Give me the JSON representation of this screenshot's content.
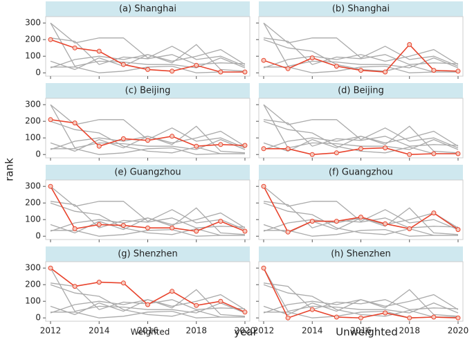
{
  "chart_data": [
    {
      "type": "line",
      "title": "(a) Shanghai",
      "x": [
        2012,
        2013,
        2014,
        2015,
        2016,
        2017,
        2018,
        2019,
        2020
      ],
      "xlim": [
        2011.8,
        2020.2
      ],
      "xticks": [
        2012,
        2014,
        2016,
        2018,
        2020
      ],
      "ylim": [
        -20,
        330
      ],
      "yticks": [
        0,
        100,
        200,
        300
      ],
      "series": [
        {
          "color": "#aaaaaa",
          "values": [
            300,
            180,
            210,
            210,
            90,
            160,
            80,
            100,
            40
          ]
        },
        {
          "color": "#aaaaaa",
          "values": [
            300,
            40,
            70,
            65,
            50,
            50,
            30,
            90,
            30
          ]
        },
        {
          "color": "#aaaaaa",
          "values": [
            210,
            190,
            50,
            95,
            85,
            110,
            50,
            60,
            55
          ]
        },
        {
          "color": "#aaaaaa",
          "values": [
            70,
            20,
            90,
            40,
            110,
            60,
            170,
            20,
            10
          ]
        },
        {
          "color": "#aaaaaa",
          "values": [
            35,
            35,
            0,
            10,
            35,
            40,
            0,
            5,
            5
          ]
        },
        {
          "color": "#aaaaaa",
          "values": [
            30,
            80,
            100,
            80,
            110,
            70,
            100,
            140,
            50
          ]
        },
        {
          "color": "#e8432c",
          "values": [
            200,
            150,
            130,
            50,
            20,
            10,
            45,
            5,
            5
          ]
        }
      ]
    },
    {
      "type": "line",
      "title": "(b) Shanghai",
      "x": [
        2012,
        2013,
        2014,
        2015,
        2016,
        2017,
        2018,
        2019,
        2020
      ],
      "xlim": [
        2011.8,
        2020.2
      ],
      "xticks": [
        2012,
        2014,
        2016,
        2018,
        2020
      ],
      "ylim": [
        -20,
        330
      ],
      "yticks": [
        0,
        100,
        200,
        300
      ],
      "series": [
        {
          "color": "#aaaaaa",
          "values": [
            300,
            180,
            210,
            210,
            90,
            160,
            80,
            100,
            40
          ]
        },
        {
          "color": "#aaaaaa",
          "values": [
            300,
            40,
            70,
            65,
            50,
            50,
            30,
            90,
            30
          ]
        },
        {
          "color": "#aaaaaa",
          "values": [
            210,
            190,
            50,
            95,
            85,
            110,
            50,
            60,
            55
          ]
        },
        {
          "color": "#aaaaaa",
          "values": [
            200,
            150,
            130,
            50,
            20,
            10,
            45,
            5,
            5
          ]
        },
        {
          "color": "#aaaaaa",
          "values": [
            35,
            35,
            0,
            10,
            35,
            40,
            0,
            5,
            5
          ]
        },
        {
          "color": "#aaaaaa",
          "values": [
            30,
            80,
            100,
            80,
            110,
            70,
            100,
            140,
            50
          ]
        },
        {
          "color": "#e8432c",
          "values": [
            75,
            25,
            90,
            40,
            15,
            5,
            170,
            15,
            10
          ]
        }
      ]
    },
    {
      "type": "line",
      "title": "(c) Beijing",
      "x": [
        2012,
        2013,
        2014,
        2015,
        2016,
        2017,
        2018,
        2019,
        2020
      ],
      "xlim": [
        2011.8,
        2020.2
      ],
      "xticks": [
        2012,
        2014,
        2016,
        2018,
        2020
      ],
      "ylim": [
        -20,
        330
      ],
      "yticks": [
        0,
        100,
        200,
        300
      ],
      "series": [
        {
          "color": "#aaaaaa",
          "values": [
            300,
            180,
            210,
            210,
            90,
            160,
            80,
            100,
            40
          ]
        },
        {
          "color": "#aaaaaa",
          "values": [
            300,
            40,
            70,
            65,
            50,
            50,
            30,
            90,
            30
          ]
        },
        {
          "color": "#aaaaaa",
          "values": [
            200,
            150,
            130,
            50,
            20,
            10,
            45,
            5,
            5
          ]
        },
        {
          "color": "#aaaaaa",
          "values": [
            70,
            20,
            90,
            40,
            110,
            60,
            170,
            20,
            10
          ]
        },
        {
          "color": "#aaaaaa",
          "values": [
            35,
            35,
            0,
            10,
            35,
            40,
            0,
            5,
            5
          ]
        },
        {
          "color": "#aaaaaa",
          "values": [
            30,
            80,
            100,
            80,
            110,
            70,
            100,
            140,
            50
          ]
        },
        {
          "color": "#e8432c",
          "values": [
            210,
            190,
            50,
            95,
            85,
            110,
            50,
            60,
            55
          ]
        }
      ]
    },
    {
      "type": "line",
      "title": "(d) Beijing",
      "x": [
        2012,
        2013,
        2014,
        2015,
        2016,
        2017,
        2018,
        2019,
        2020
      ],
      "xlim": [
        2011.8,
        2020.2
      ],
      "xticks": [
        2012,
        2014,
        2016,
        2018,
        2020
      ],
      "ylim": [
        -20,
        330
      ],
      "yticks": [
        0,
        100,
        200,
        300
      ],
      "series": [
        {
          "color": "#aaaaaa",
          "values": [
            300,
            180,
            210,
            210,
            90,
            160,
            80,
            100,
            40
          ]
        },
        {
          "color": "#aaaaaa",
          "values": [
            300,
            40,
            70,
            65,
            50,
            50,
            30,
            90,
            30
          ]
        },
        {
          "color": "#aaaaaa",
          "values": [
            200,
            150,
            130,
            50,
            20,
            10,
            45,
            5,
            5
          ]
        },
        {
          "color": "#aaaaaa",
          "values": [
            70,
            20,
            90,
            40,
            110,
            60,
            170,
            20,
            10
          ]
        },
        {
          "color": "#aaaaaa",
          "values": [
            210,
            190,
            50,
            95,
            85,
            110,
            50,
            60,
            55
          ]
        },
        {
          "color": "#aaaaaa",
          "values": [
            30,
            80,
            100,
            80,
            110,
            70,
            100,
            140,
            50
          ]
        },
        {
          "color": "#e8432c",
          "values": [
            35,
            35,
            0,
            10,
            35,
            40,
            0,
            5,
            5
          ]
        }
      ]
    },
    {
      "type": "line",
      "title": "(e) Guangzhou",
      "x": [
        2012,
        2013,
        2014,
        2015,
        2016,
        2017,
        2018,
        2019,
        2020
      ],
      "xlim": [
        2011.8,
        2020.2
      ],
      "xticks": [
        2012,
        2014,
        2016,
        2018,
        2020
      ],
      "ylim": [
        -20,
        330
      ],
      "yticks": [
        0,
        100,
        200,
        300
      ],
      "series": [
        {
          "color": "#aaaaaa",
          "values": [
            300,
            180,
            210,
            210,
            90,
            160,
            80,
            100,
            40
          ]
        },
        {
          "color": "#aaaaaa",
          "values": [
            210,
            190,
            50,
            95,
            85,
            110,
            50,
            60,
            55
          ]
        },
        {
          "color": "#aaaaaa",
          "values": [
            200,
            150,
            130,
            50,
            20,
            10,
            45,
            5,
            5
          ]
        },
        {
          "color": "#aaaaaa",
          "values": [
            70,
            20,
            90,
            40,
            110,
            60,
            170,
            20,
            10
          ]
        },
        {
          "color": "#aaaaaa",
          "values": [
            35,
            35,
            0,
            10,
            35,
            40,
            0,
            5,
            5
          ]
        },
        {
          "color": "#aaaaaa",
          "values": [
            30,
            80,
            100,
            80,
            110,
            70,
            100,
            140,
            50
          ]
        },
        {
          "color": "#e8432c",
          "values": [
            300,
            45,
            70,
            65,
            50,
            50,
            30,
            90,
            30
          ]
        }
      ]
    },
    {
      "type": "line",
      "title": "(f) Guangzhou",
      "x": [
        2012,
        2013,
        2014,
        2015,
        2016,
        2017,
        2018,
        2019,
        2020
      ],
      "xlim": [
        2011.8,
        2020.2
      ],
      "xticks": [
        2012,
        2014,
        2016,
        2018,
        2020
      ],
      "ylim": [
        -20,
        330
      ],
      "yticks": [
        0,
        100,
        200,
        300
      ],
      "series": [
        {
          "color": "#aaaaaa",
          "values": [
            300,
            180,
            210,
            210,
            90,
            160,
            80,
            100,
            40
          ]
        },
        {
          "color": "#aaaaaa",
          "values": [
            210,
            190,
            50,
            95,
            85,
            110,
            50,
            60,
            55
          ]
        },
        {
          "color": "#aaaaaa",
          "values": [
            200,
            150,
            130,
            50,
            20,
            10,
            45,
            5,
            5
          ]
        },
        {
          "color": "#aaaaaa",
          "values": [
            70,
            20,
            90,
            40,
            110,
            60,
            170,
            20,
            10
          ]
        },
        {
          "color": "#aaaaaa",
          "values": [
            35,
            35,
            0,
            10,
            35,
            40,
            0,
            5,
            5
          ]
        },
        {
          "color": "#aaaaaa",
          "values": [
            30,
            80,
            100,
            80,
            110,
            70,
            100,
            140,
            50
          ]
        },
        {
          "color": "#e8432c",
          "values": [
            300,
            25,
            90,
            90,
            115,
            75,
            45,
            140,
            40
          ]
        }
      ]
    },
    {
      "type": "line",
      "title": "(g) Shenzhen",
      "x": [
        2012,
        2013,
        2014,
        2015,
        2016,
        2017,
        2018,
        2019,
        2020
      ],
      "xlim": [
        2011.8,
        2020.2
      ],
      "xticks": [
        2012,
        2014,
        2016,
        2018,
        2020
      ],
      "ylim": [
        -20,
        330
      ],
      "yticks": [
        0,
        100,
        200,
        300
      ],
      "series": [
        {
          "color": "#aaaaaa",
          "values": [
            300,
            40,
            70,
            65,
            50,
            50,
            30,
            90,
            30
          ]
        },
        {
          "color": "#aaaaaa",
          "values": [
            210,
            190,
            50,
            95,
            85,
            110,
            50,
            60,
            55
          ]
        },
        {
          "color": "#aaaaaa",
          "values": [
            200,
            150,
            130,
            50,
            20,
            10,
            45,
            5,
            5
          ]
        },
        {
          "color": "#aaaaaa",
          "values": [
            70,
            20,
            90,
            40,
            110,
            60,
            170,
            20,
            10
          ]
        },
        {
          "color": "#aaaaaa",
          "values": [
            35,
            35,
            0,
            10,
            35,
            40,
            0,
            5,
            5
          ]
        },
        {
          "color": "#aaaaaa",
          "values": [
            30,
            80,
            100,
            80,
            110,
            70,
            100,
            140,
            50
          ]
        },
        {
          "color": "#e8432c",
          "values": [
            300,
            190,
            215,
            210,
            80,
            160,
            75,
            100,
            35
          ]
        }
      ]
    },
    {
      "type": "line",
      "title": "(h) Shenzhen",
      "x": [
        2012,
        2013,
        2014,
        2015,
        2016,
        2017,
        2018,
        2019,
        2020
      ],
      "xlim": [
        2011.8,
        2020.2
      ],
      "xticks": [
        2012,
        2014,
        2016,
        2018,
        2020
      ],
      "ylim": [
        -20,
        330
      ],
      "yticks": [
        0,
        100,
        200,
        300
      ],
      "series": [
        {
          "color": "#aaaaaa",
          "values": [
            300,
            40,
            70,
            65,
            50,
            50,
            30,
            90,
            30
          ]
        },
        {
          "color": "#aaaaaa",
          "values": [
            210,
            190,
            50,
            95,
            85,
            110,
            50,
            60,
            55
          ]
        },
        {
          "color": "#aaaaaa",
          "values": [
            200,
            150,
            130,
            50,
            20,
            10,
            45,
            5,
            5
          ]
        },
        {
          "color": "#aaaaaa",
          "values": [
            70,
            20,
            90,
            40,
            110,
            60,
            170,
            20,
            10
          ]
        },
        {
          "color": "#aaaaaa",
          "values": [
            35,
            35,
            0,
            10,
            35,
            40,
            0,
            5,
            5
          ]
        },
        {
          "color": "#aaaaaa",
          "values": [
            30,
            80,
            100,
            80,
            110,
            70,
            100,
            140,
            50
          ]
        },
        {
          "color": "#e8432c",
          "values": [
            300,
            0,
            50,
            5,
            0,
            30,
            0,
            5,
            0
          ]
        }
      ]
    }
  ],
  "labels": {
    "y": "rank",
    "x": "year",
    "left": "Weighted",
    "right": "Unweighted"
  }
}
